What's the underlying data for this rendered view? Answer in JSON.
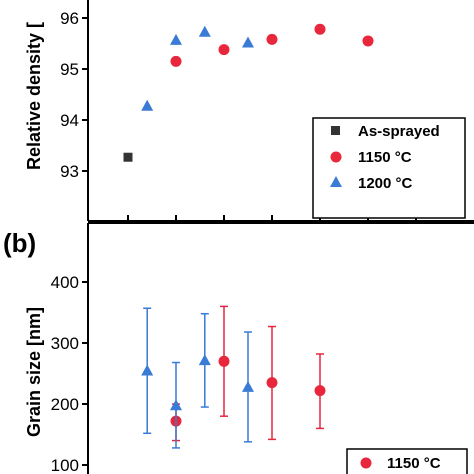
{
  "chart_data": [
    {
      "type": "scatter",
      "panel_label": "",
      "ylabel": "Relative density [",
      "ylim": [
        92.0,
        96.3
      ],
      "yticks": [
        "93",
        "94",
        "95",
        "96"
      ],
      "legend_position": "bottom-right",
      "series": [
        {
          "name": "As-sprayed",
          "marker": "square",
          "color": "#333333",
          "points": [
            {
              "x": 1,
              "y": 93.27
            }
          ]
        },
        {
          "name": "1150 °C",
          "marker": "circle",
          "color": "#e8273d",
          "points": [
            {
              "x": 2,
              "y": 95.15
            },
            {
              "x": 3,
              "y": 95.38
            },
            {
              "x": 4,
              "y": 95.58
            },
            {
              "x": 5,
              "y": 95.78
            },
            {
              "x": 6,
              "y": 95.55
            }
          ]
        },
        {
          "name": "1200 °C",
          "marker": "triangle",
          "color": "#3a7bd5",
          "points": [
            {
              "x": 1.4,
              "y": 94.28
            },
            {
              "x": 2,
              "y": 95.57
            },
            {
              "x": 2.6,
              "y": 95.73
            },
            {
              "x": 3.5,
              "y": 95.52
            }
          ]
        }
      ]
    },
    {
      "type": "scatter",
      "panel_label": "(b)",
      "ylabel": "Grain size [nm]",
      "ylim": [
        90,
        465
      ],
      "yticks": [
        "100",
        "200",
        "300",
        "400"
      ],
      "legend_position": "bottom-right",
      "series": [
        {
          "name": "1150 °C",
          "marker": "circle",
          "color": "#e8273d",
          "points": [
            {
              "x": 2,
              "y": 172,
              "err_low": 140,
              "err_high": 200
            },
            {
              "x": 3,
              "y": 270,
              "err_low": 180,
              "err_high": 360
            },
            {
              "x": 4,
              "y": 235,
              "err_low": 142,
              "err_high": 327
            },
            {
              "x": 5,
              "y": 222,
              "err_low": 160,
              "err_high": 282
            }
          ]
        },
        {
          "name": "",
          "marker": "triangle",
          "color": "#3a7bd5",
          "points": [
            {
              "x": 1.4,
              "y": 255,
              "err_low": 152,
              "err_high": 357
            },
            {
              "x": 2,
              "y": 198,
              "err_low": 128,
              "err_high": 268
            },
            {
              "x": 2.6,
              "y": 272,
              "err_low": 195,
              "err_high": 348
            },
            {
              "x": 3.5,
              "y": 228,
              "err_low": 138,
              "err_high": 318
            }
          ]
        }
      ]
    }
  ]
}
